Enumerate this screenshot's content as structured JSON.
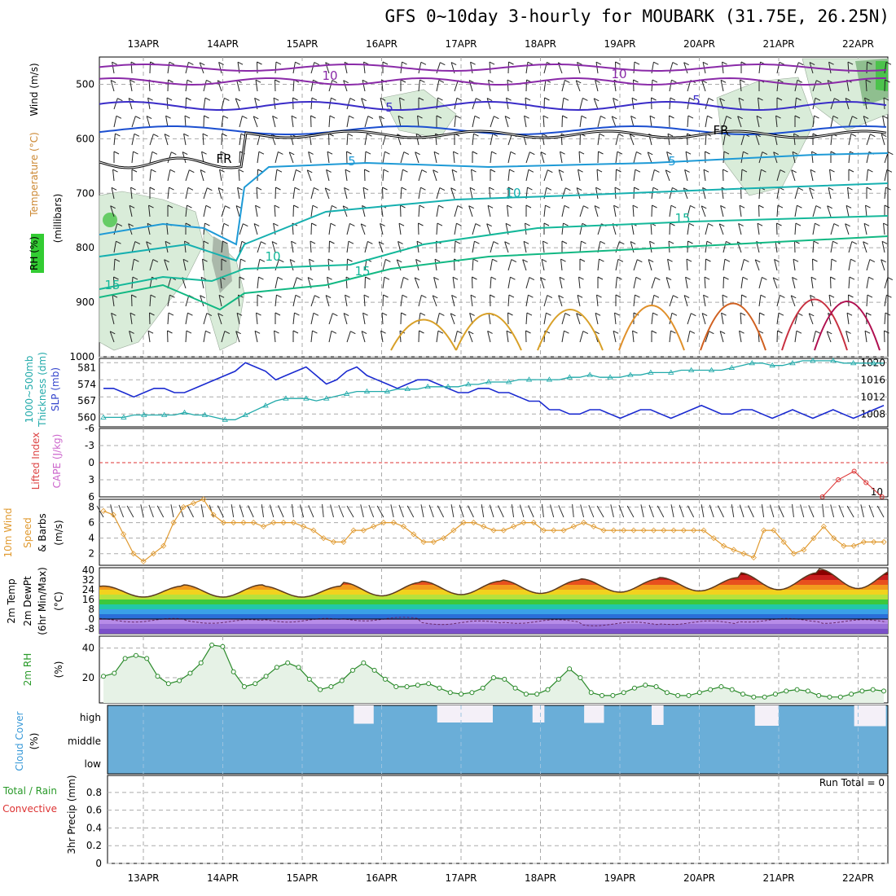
{
  "header": {
    "title": "GFS 0~10day 3-hourly for MOUBARK (31.75E, 26.25N)"
  },
  "dates": [
    "13APR",
    "14APR",
    "15APR",
    "16APR",
    "17APR",
    "18APR",
    "19APR",
    "20APR",
    "21APR",
    "22APR"
  ],
  "labels": {
    "upper": [
      "RH (%)",
      "Temperature (°C)",
      "Wind (m/s)",
      "(millibars)"
    ],
    "slp": [
      "1000~500mb",
      "Thickness (dm)",
      "SLP (mb)"
    ],
    "stability": [
      "Lifted Index",
      "CAPE (J/kg)"
    ],
    "wind10": [
      "10m Wind",
      "Speed",
      "& Barbs",
      "(m/s)"
    ],
    "temp2m": [
      "2m Temp",
      "2m DewPt",
      "(6hr Min/Max)",
      "(°C)"
    ],
    "rh2m": [
      "2m RH",
      "(%)"
    ],
    "cloud": [
      "Cloud Cover",
      "(%)"
    ],
    "precip": [
      "Total / Rain",
      "Convective",
      "3hr Precip (mm)"
    ],
    "run_total": "Run Total = 0"
  },
  "contour_labels": {
    "temp": [
      "10",
      "10",
      "5",
      "5",
      "FR",
      "FR",
      "5",
      "5",
      "10",
      "15",
      "10",
      "15",
      "15"
    ]
  },
  "chart_data": [
    {
      "type": "line",
      "name": "upper-air cross section",
      "y_ticks": [
        500,
        600,
        700,
        800,
        900,
        1000
      ],
      "ylim": [
        450,
        1000
      ],
      "isotherms_note": "10,5,FR,5,10,15 contours"
    },
    {
      "type": "line",
      "name": "slp-thickness",
      "slp_ticks": [
        1008,
        1012,
        1016,
        1020
      ],
      "thickness_ticks": [
        560,
        567,
        574,
        581
      ],
      "slp": [
        1014,
        1014,
        1013,
        1012,
        1013,
        1014,
        1014,
        1013,
        1013,
        1014,
        1015,
        1016,
        1017,
        1018,
        1020,
        1019,
        1018,
        1016,
        1017,
        1018,
        1019,
        1017,
        1015,
        1016,
        1018,
        1019,
        1017,
        1016,
        1015,
        1014,
        1015,
        1016,
        1016,
        1015,
        1014,
        1013,
        1013,
        1014,
        1014,
        1013,
        1013,
        1012,
        1011,
        1011,
        1009,
        1009,
        1008,
        1008,
        1009,
        1009,
        1008,
        1007,
        1008,
        1009,
        1009,
        1008,
        1007,
        1008,
        1009,
        1010,
        1009,
        1008,
        1008,
        1009,
        1009,
        1008,
        1007,
        1008,
        1009,
        1008,
        1007,
        1008,
        1009,
        1008,
        1007,
        1008,
        1009,
        1010
      ],
      "thickness": [
        560,
        560,
        560,
        561,
        561,
        561,
        561,
        561,
        562,
        561,
        561,
        560,
        559,
        559,
        561,
        563,
        565,
        567,
        568,
        568,
        568,
        567,
        568,
        569,
        570,
        571,
        571,
        571,
        571,
        572,
        572,
        572,
        573,
        573,
        573,
        573,
        574,
        574,
        575,
        575,
        575,
        576,
        576,
        576,
        576,
        576,
        577,
        577,
        578,
        577,
        577,
        577,
        578,
        578,
        579,
        579,
        579,
        580,
        580,
        580,
        580,
        580,
        581,
        582,
        583,
        583,
        582,
        582,
        583,
        584,
        584,
        584,
        584,
        583,
        583,
        583,
        583,
        583
      ]
    },
    {
      "type": "line",
      "name": "lifted-index-cape",
      "li_ticks": [
        -6,
        -3,
        0,
        3,
        6
      ],
      "cape_ticks": [
        10
      ],
      "li_series": [
        {
          "x_day": 8.55,
          "y": 6
        },
        {
          "x_day": 8.75,
          "y": 3
        },
        {
          "x_day": 8.95,
          "y": 1.5
        },
        {
          "x_day": 9.1,
          "y": 3.5
        },
        {
          "x_day": 9.3,
          "y": 6
        }
      ]
    },
    {
      "type": "line",
      "name": "10m-wind",
      "yticks": [
        2,
        4,
        6,
        8
      ],
      "ylim": [
        0.5,
        9
      ],
      "values": [
        7.5,
        7,
        4.5,
        2,
        1,
        2,
        3,
        6,
        8,
        8.5,
        9,
        7,
        6,
        6,
        6,
        6,
        5.5,
        6,
        6,
        6,
        5.5,
        5,
        4,
        3.5,
        3.5,
        5,
        5,
        5.5,
        6,
        6,
        5.5,
        4.5,
        3.5,
        3.5,
        4,
        5,
        6,
        6,
        5.5,
        5,
        5,
        5.5,
        6,
        6,
        5,
        5,
        5,
        5.5,
        6,
        5.5,
        5,
        5,
        5,
        5,
        5,
        5,
        5,
        5,
        5,
        5,
        5,
        4,
        3,
        2.5,
        2,
        1.5,
        5,
        5,
        3.5,
        2,
        2.5,
        4,
        5.5,
        4,
        3,
        3,
        3.5,
        3.5,
        3.5
      ]
    },
    {
      "type": "area",
      "name": "2m-temp",
      "yticks": [
        -8,
        0,
        8,
        16,
        24,
        32,
        40
      ],
      "ylim": [
        -12,
        42
      ],
      "temp_max_by_day": [
        27,
        28,
        27,
        30,
        31,
        32,
        33,
        34,
        38,
        41
      ],
      "temp_min_by_day": [
        18,
        18,
        18,
        19,
        20,
        21,
        22,
        23,
        24,
        25
      ],
      "dewpt": [
        -1,
        -2,
        -1,
        0,
        -3,
        -2,
        -4,
        -3,
        -1,
        -2
      ]
    },
    {
      "type": "area",
      "name": "2m-rh",
      "yticks": [
        20,
        40
      ],
      "ylim": [
        3,
        48
      ],
      "values": [
        21,
        23,
        33,
        35,
        33,
        21,
        16,
        18,
        23,
        30,
        42,
        41,
        24,
        14,
        16,
        21,
        27,
        30,
        27,
        19,
        12,
        14,
        18,
        25,
        30,
        25,
        19,
        14,
        14,
        15,
        16,
        13,
        10,
        9,
        10,
        13,
        20,
        19,
        13,
        9,
        9,
        12,
        19,
        26,
        20,
        10,
        8,
        8,
        10,
        13,
        15,
        14,
        10,
        8,
        8,
        10,
        12,
        14,
        12,
        9,
        7,
        7,
        9,
        11,
        12,
        11,
        8,
        7,
        7,
        9,
        11,
        12,
        11
      ]
    },
    {
      "type": "bar",
      "name": "cloud-cover",
      "yticks": [
        "low",
        "middle",
        "high"
      ],
      "high_gaps": [
        {
          "start_day": 2.65,
          "end_day": 2.9
        },
        {
          "start_day": 3.7,
          "end_day": 4.4
        },
        {
          "start_day": 4.9,
          "end_day": 5.05
        },
        {
          "start_day": 5.55,
          "end_day": 5.8
        },
        {
          "start_day": 6.4,
          "end_day": 6.55
        },
        {
          "start_day": 7.7,
          "end_day": 8.0
        },
        {
          "start_day": 8.95,
          "end_day": 9.35
        },
        {
          "start_day": 9.6,
          "end_day": 9.9
        }
      ]
    },
    {
      "type": "bar",
      "name": "3hr-precip",
      "yticks": [
        0,
        0.2,
        0.4,
        0.6,
        0.8
      ],
      "ylim": [
        0,
        0.9
      ],
      "values": []
    }
  ]
}
